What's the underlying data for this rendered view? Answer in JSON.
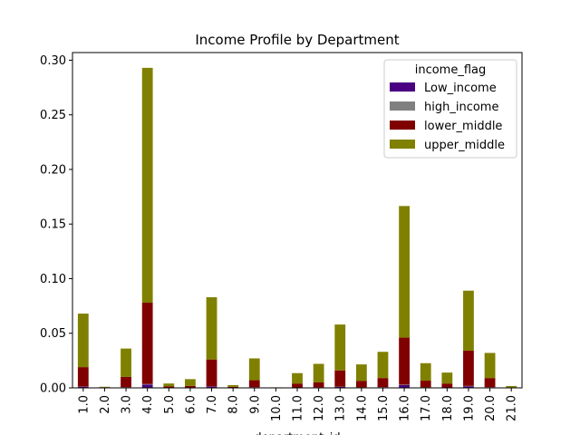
{
  "chart_data": {
    "type": "bar",
    "stacked": true,
    "title": "Income Profile by Department",
    "xlabel": "department_id",
    "ylabel": "",
    "ylim": [
      0,
      0.307
    ],
    "yticks": [
      "0.00",
      "0.05",
      "0.10",
      "0.15",
      "0.20",
      "0.25",
      "0.30"
    ],
    "categories": [
      "1.0",
      "2.0",
      "3.0",
      "4.0",
      "5.0",
      "6.0",
      "7.0",
      "8.0",
      "9.0",
      "10.0",
      "11.0",
      "12.0",
      "13.0",
      "14.0",
      "15.0",
      "16.0",
      "17.0",
      "18.0",
      "19.0",
      "20.0",
      "21.0"
    ],
    "legend_title": "income_flag",
    "legend_position": "top-right",
    "series": [
      {
        "name": "Low_income",
        "color": "#4b0082",
        "values": [
          0.001,
          0,
          0.0005,
          0.003,
          0.0002,
          0.0002,
          0.0012,
          0.0001,
          0.0005,
          0,
          0.0003,
          0.0004,
          0.0009,
          0.0004,
          0.0006,
          0.0025,
          0.0004,
          0.0003,
          0.0015,
          0.0005,
          0
        ]
      },
      {
        "name": "high_income",
        "color": "#808080",
        "values": [
          0.0002,
          0,
          0.0001,
          0.0005,
          0,
          0,
          0.0002,
          0,
          0.0001,
          0,
          0,
          0.0001,
          0.0002,
          0.0001,
          0.0001,
          0.0005,
          0.0001,
          0,
          0.0003,
          0.0001,
          0
        ]
      },
      {
        "name": "lower_middle",
        "color": "#800000",
        "values": [
          0.0178,
          0.0005,
          0.0094,
          0.0745,
          0.0013,
          0.0016,
          0.0246,
          0.0009,
          0.0064,
          0.0002,
          0.0037,
          0.0045,
          0.0149,
          0.006,
          0.0083,
          0.043,
          0.0061,
          0.0037,
          0.0322,
          0.0084,
          0.0005
        ]
      },
      {
        "name": "upper_middle",
        "color": "#808000",
        "values": [
          0.049,
          0.0005,
          0.026,
          0.215,
          0.0025,
          0.0062,
          0.057,
          0.0015,
          0.02,
          0.0003,
          0.0095,
          0.017,
          0.042,
          0.015,
          0.024,
          0.1205,
          0.016,
          0.01,
          0.055,
          0.023,
          0.0012
        ]
      }
    ]
  }
}
